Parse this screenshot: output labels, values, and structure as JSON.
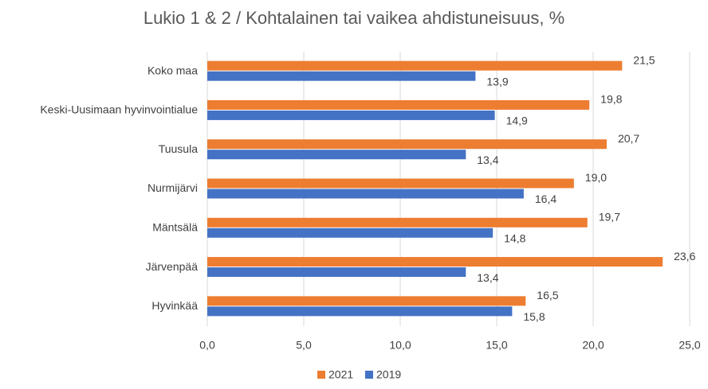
{
  "chart_data": {
    "type": "hbar",
    "title": "Lukio 1 & 2 / Kohtalainen tai vaikea ahdistuneisuus, %",
    "categories": [
      "Koko maa",
      "Keski-Uusimaan hyvinvointialue",
      "Tuusula",
      "Nurmijärvi",
      "Mäntsälä",
      "Järvenpää",
      "Hyvinkää"
    ],
    "series": [
      {
        "name": "2021",
        "color": "#ED7D31",
        "values": [
          21.5,
          19.8,
          20.7,
          19.0,
          19.7,
          23.6,
          16.5
        ],
        "value_labels": [
          "21,5",
          "19,8",
          "20,7",
          "19,0",
          "19,7",
          "23,6",
          "16,5"
        ]
      },
      {
        "name": "2019",
        "color": "#4472C4",
        "values": [
          13.9,
          14.9,
          13.4,
          16.4,
          14.8,
          13.4,
          15.8
        ],
        "value_labels": [
          "13,9",
          "14,9",
          "13,4",
          "16,4",
          "14,8",
          "13,4",
          "15,8"
        ]
      }
    ],
    "xlim": [
      0,
      25
    ],
    "xticks": [
      {
        "value": 0,
        "label": "0,0"
      },
      {
        "value": 5,
        "label": "5,0"
      },
      {
        "value": 10,
        "label": "10,0"
      },
      {
        "value": 15,
        "label": "15,0"
      },
      {
        "value": 20,
        "label": "20,0"
      },
      {
        "value": 25,
        "label": "25,0"
      }
    ],
    "grid": true,
    "legend": "bottom"
  }
}
